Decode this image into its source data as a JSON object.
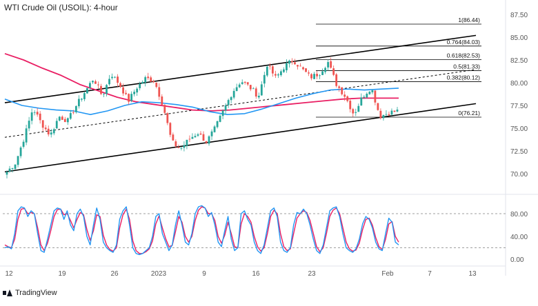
{
  "title": "WTI Crude Oil (USOIL): 4-hour",
  "brand": "TradingView",
  "colors": {
    "up": "#26a69a",
    "down": "#ef5350",
    "ema_slow": "#e91e63",
    "ema_fast": "#2196f3",
    "channel": "#000000",
    "fib": "#000000",
    "stoch_k": "#2196f3",
    "stoch_d": "#e91e63"
  },
  "chart_data": [
    {
      "type": "candlestick",
      "x_tick_labels": [
        "12",
        "19",
        "26",
        "2023",
        "9",
        "16",
        "23",
        "Feb",
        "7",
        "13"
      ],
      "y_tick_labels": [
        "87.50",
        "85.00",
        "82.50",
        "80.00",
        "77.50",
        "75.00",
        "72.50",
        "70.00"
      ],
      "ylim": [
        67.5,
        88.0
      ],
      "anchor_prices": [
        70.2,
        71.2,
        74.0,
        77.2,
        75.5,
        74.2,
        76.3,
        75.8,
        77.5,
        79.0,
        80.5,
        78.5,
        81.0,
        79.8,
        78.0,
        79.5,
        80.5,
        80.2,
        77.5,
        73.5,
        72.7,
        73.8,
        74.5,
        73.5,
        75.0,
        77.0,
        79.0,
        80.2,
        79.5,
        78.5,
        82.0,
        80.5,
        81.8,
        82.5,
        81.5,
        80.6,
        81.0,
        82.3,
        79.8,
        78.5,
        76.5,
        78.5,
        79.5,
        76.3,
        76.7,
        76.9
      ],
      "fibonacci": [
        {
          "label": "1(86.44)",
          "price": 86.44
        },
        {
          "label": "0.764(84.03)",
          "price": 84.03
        },
        {
          "label": "0.618(82.53)",
          "price": 82.53
        },
        {
          "label": "0.5(81.33)",
          "price": 81.33
        },
        {
          "label": "0.382(80.12)",
          "price": 80.12
        },
        {
          "label": "0(76.21)",
          "price": 76.21
        }
      ],
      "channel": {
        "upper": [
          {
            "time": 0.0,
            "price": 77.8
          },
          {
            "time": 0.88,
            "price": 85.2
          }
        ],
        "lower": [
          {
            "time": 0.0,
            "price": 70.2
          },
          {
            "time": 0.88,
            "price": 77.7
          }
        ],
        "mid": [
          {
            "time": 0.0,
            "price": 74.0
          },
          {
            "time": 0.88,
            "price": 81.45
          }
        ]
      },
      "ema_slow": [
        83.2,
        82.5,
        81.6,
        80.8,
        79.8,
        79.1,
        78.4,
        77.9,
        77.6,
        77.3,
        77.0,
        76.9,
        77.0,
        77.2,
        77.4,
        77.6,
        77.8,
        78.0,
        78.2,
        78.3,
        78.3,
        78.3
      ],
      "ema_fast": [
        78.2,
        77.5,
        77.2,
        77.0,
        76.9,
        76.5,
        76.9,
        77.5,
        77.9,
        77.8,
        77.6,
        77.3,
        76.8,
        76.5,
        76.6,
        77.1,
        77.7,
        78.3,
        78.8,
        79.2,
        79.3,
        79.2,
        79.3,
        79.4
      ]
    },
    {
      "type": "line",
      "indicator": "stochastic",
      "y_tick_labels": [
        "80.00",
        "40.00",
        "0.00"
      ],
      "ylim": [
        -5,
        100
      ],
      "levels": [
        80,
        20
      ],
      "k": [
        20,
        22,
        18,
        45,
        85,
        92,
        90,
        75,
        85,
        80,
        45,
        15,
        12,
        35,
        60,
        85,
        90,
        88,
        70,
        85,
        60,
        50,
        80,
        88,
        75,
        40,
        25,
        60,
        90,
        70,
        30,
        20,
        15,
        12,
        25,
        70,
        85,
        92,
        60,
        20,
        10,
        8,
        10,
        15,
        20,
        40,
        75,
        80,
        45,
        30,
        15,
        25,
        60,
        85,
        60,
        30,
        25,
        45,
        80,
        92,
        94,
        90,
        75,
        82,
        60,
        30,
        22,
        50,
        75,
        35,
        15,
        20,
        80,
        85,
        70,
        60,
        30,
        15,
        10,
        25,
        55,
        85,
        90,
        75,
        30,
        15,
        12,
        20,
        60,
        82,
        80,
        88,
        80,
        60,
        35,
        15,
        10,
        25,
        55,
        85,
        90,
        92,
        75,
        45,
        20,
        15,
        12,
        18,
        35,
        62,
        75,
        70,
        55,
        30,
        18,
        15,
        45,
        72,
        65,
        30,
        25
      ],
      "d": [
        25,
        22,
        20,
        35,
        70,
        88,
        89,
        80,
        82,
        80,
        55,
        25,
        15,
        28,
        50,
        75,
        87,
        88,
        78,
        80,
        68,
        55,
        70,
        82,
        78,
        52,
        33,
        50,
        78,
        75,
        42,
        25,
        17,
        14,
        20,
        55,
        78,
        88,
        70,
        32,
        15,
        10,
        10,
        13,
        18,
        32,
        62,
        76,
        55,
        36,
        22,
        24,
        48,
        75,
        65,
        40,
        30,
        40,
        68,
        86,
        92,
        90,
        80,
        80,
        68,
        40,
        28,
        42,
        65,
        45,
        22,
        20,
        62,
        80,
        75,
        65,
        40,
        22,
        14,
        20,
        45,
        75,
        86,
        80,
        45,
        22,
        15,
        18,
        45,
        72,
        80,
        85,
        82,
        68,
        45,
        22,
        13,
        20,
        45,
        75,
        86,
        90,
        80,
        55,
        30,
        18,
        14,
        16,
        28,
        52,
        70,
        72,
        60,
        38,
        22,
        17,
        35,
        62,
        66,
        40,
        30
      ]
    }
  ]
}
